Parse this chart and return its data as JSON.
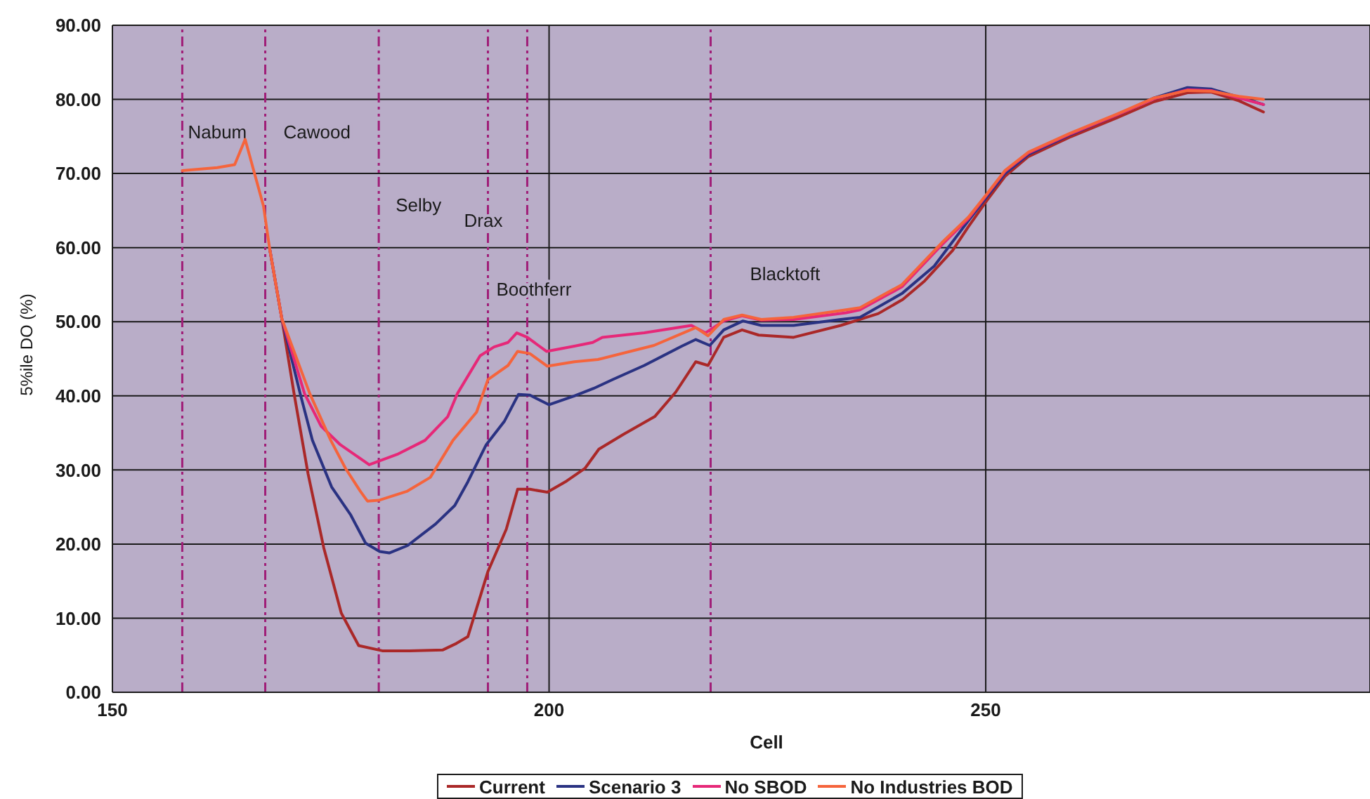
{
  "chart_data": {
    "type": "line",
    "xlabel": "Cell",
    "ylabel": "5%ile DO (%)",
    "xlim": [
      150,
      294
    ],
    "xticks": [
      150,
      200,
      250
    ],
    "ylim": [
      0,
      90
    ],
    "yticks": [
      {
        "value": 0,
        "label": "0.00"
      },
      {
        "value": 10,
        "label": "10.00"
      },
      {
        "value": 20,
        "label": "20.00"
      },
      {
        "value": 30,
        "label": "30.00"
      },
      {
        "value": 40,
        "label": "40.00"
      },
      {
        "value": 50,
        "label": "50.00"
      },
      {
        "value": 60,
        "label": "60.00"
      },
      {
        "value": 70,
        "label": "70.00"
      },
      {
        "value": 80,
        "label": "80.00"
      },
      {
        "value": 90,
        "label": "90.00"
      }
    ],
    "grid": true,
    "legend": "bottom",
    "ref_lines": [
      {
        "axis": "x",
        "value": 158,
        "label": "Nabum",
        "color": "#a01e78",
        "line_style": "dashed"
      },
      {
        "axis": "x",
        "value": 167.5,
        "label": "Cawood",
        "color": "#a01e78",
        "line_style": "dashed"
      },
      {
        "axis": "x",
        "value": 180.5,
        "label": "Selby",
        "color": "#a01e78",
        "line_style": "dashed"
      },
      {
        "axis": "x",
        "value": 193,
        "label": "Drax",
        "color": "#a01e78",
        "line_style": "dashed"
      },
      {
        "axis": "x",
        "value": 197.5,
        "label": "Boothferr",
        "color": "#a01e78",
        "line_style": "dashed"
      },
      {
        "axis": "x",
        "value": 218.5,
        "label": "Blacktoft",
        "color": "#a01e78",
        "line_style": "dashed"
      }
    ],
    "series": [
      {
        "name": "Current",
        "color": "#aa2828",
        "x": [
          168,
          169.4,
          170.8,
          172.4,
          174.2,
          176.2,
          178.2,
          180.9,
          184,
          187.8,
          189.4,
          190.7,
          193,
          195.1,
          196.4,
          197.8,
          199.8,
          202,
          204.1,
          205.7,
          208.5,
          212.1,
          214.5,
          216.8,
          218.2,
          220,
          222.1,
          224,
          228,
          233.4,
          237.7,
          240.5,
          243,
          246.2,
          248,
          250.1,
          252.2,
          254.9,
          259.6,
          265,
          269.3,
          273.1,
          275.8,
          279,
          281.8
        ],
        "values": [
          59.9,
          50.4,
          40.3,
          29.5,
          19.5,
          10.7,
          6.3,
          5.6,
          5.6,
          5.7,
          6.6,
          7.5,
          16.3,
          22,
          27.4,
          27.4,
          27,
          28.5,
          30.2,
          32.8,
          34.8,
          37.2,
          40.5,
          44.6,
          44.1,
          47.9,
          48.9,
          48.2,
          47.9,
          49.5,
          51.1,
          53,
          55.5,
          59.6,
          62.8,
          66.3,
          69.6,
          72.3,
          74.9,
          77.5,
          79.7,
          80.9,
          81,
          79.8,
          78.3
        ]
      },
      {
        "name": "Scenario 3",
        "color": "#2a3282",
        "x": [
          168,
          169.4,
          171.5,
          172.9,
          175.1,
          177.3,
          179,
          180.6,
          181.7,
          183.8,
          187,
          189.2,
          190.7,
          192.8,
          194.9,
          196.5,
          197.8,
          200,
          202.9,
          205.1,
          207.3,
          210.9,
          215.2,
          216.8,
          218.4,
          220,
          222.2,
          224.3,
          228,
          233.4,
          235.6,
          240.4,
          244.1,
          248,
          250.1,
          252.2,
          254.9,
          259.6,
          265,
          269.3,
          273.1,
          275.8,
          279,
          281.8
        ],
        "values": [
          59.9,
          50.4,
          40.3,
          34,
          27.7,
          23.9,
          20.1,
          19,
          18.8,
          19.8,
          22.7,
          25.2,
          28.4,
          33.4,
          36.6,
          40.2,
          40.1,
          38.8,
          40,
          41,
          42.2,
          44.1,
          46.7,
          47.6,
          46.8,
          48.9,
          50.1,
          49.5,
          49.5,
          50.3,
          50.6,
          53.8,
          57.5,
          63.6,
          66.8,
          70,
          72.6,
          75.2,
          77.9,
          80.2,
          81.6,
          81.4,
          80.3,
          79.3
        ]
      },
      {
        "name": "No SBOD",
        "color": "#e62878",
        "x": [
          168,
          169.4,
          172,
          173.9,
          176.1,
          178.8,
          179.4,
          182.6,
          185.8,
          188.4,
          189.5,
          192.1,
          193.7,
          195.3,
          196.3,
          197.5,
          199.7,
          202.9,
          205,
          206.1,
          210.9,
          216.3,
          217.9,
          220,
          222.1,
          224.3,
          228,
          234,
          235.6,
          240.4,
          245,
          248,
          250.1,
          252.2,
          254.9,
          259.6,
          265,
          269.3,
          273.1,
          275.8,
          279,
          281.8
        ],
        "values": [
          59.9,
          50.4,
          40.3,
          35.9,
          33.4,
          31.2,
          30.7,
          32.1,
          34,
          37.2,
          40.3,
          45.4,
          46.6,
          47.2,
          48.5,
          47.9,
          46,
          46.7,
          47.2,
          47.9,
          48.5,
          49.5,
          48.5,
          50.1,
          50.8,
          50.2,
          50.3,
          51.2,
          51.6,
          54.7,
          60.4,
          63.9,
          67.1,
          70.3,
          72.8,
          75.3,
          77.9,
          80.1,
          81.3,
          81.2,
          80.2,
          79.3
        ]
      },
      {
        "name": "No Industries BOD",
        "color": "#f5643c",
        "x": [
          158,
          162,
          164,
          165.2,
          167.3,
          168,
          169.4,
          172.6,
          175,
          176.7,
          178.4,
          179.2,
          180.5,
          183.7,
          186.4,
          189,
          191.7,
          193,
          195.3,
          196.4,
          197.8,
          199.8,
          202.9,
          205.6,
          212,
          216.8,
          218.2,
          220,
          222.1,
          224.3,
          228,
          234,
          235.6,
          240.4,
          245,
          248,
          250.1,
          252.2,
          254.9,
          259.6,
          265,
          269.3,
          273.1,
          275.8,
          279,
          281.8
        ],
        "values": [
          70.4,
          70.8,
          71.2,
          74.6,
          65.6,
          59.9,
          50.4,
          40.3,
          34,
          30.2,
          27.1,
          25.8,
          25.9,
          27.1,
          29,
          34,
          37.8,
          42.2,
          44.1,
          46,
          45.7,
          44,
          44.6,
          44.9,
          46.8,
          49.2,
          48.1,
          50.3,
          50.9,
          50.3,
          50.6,
          51.6,
          51.9,
          55,
          60.7,
          64.1,
          67.2,
          70.4,
          72.9,
          75.4,
          78,
          80.2,
          81.2,
          81.1,
          80.4,
          80
        ]
      }
    ]
  }
}
